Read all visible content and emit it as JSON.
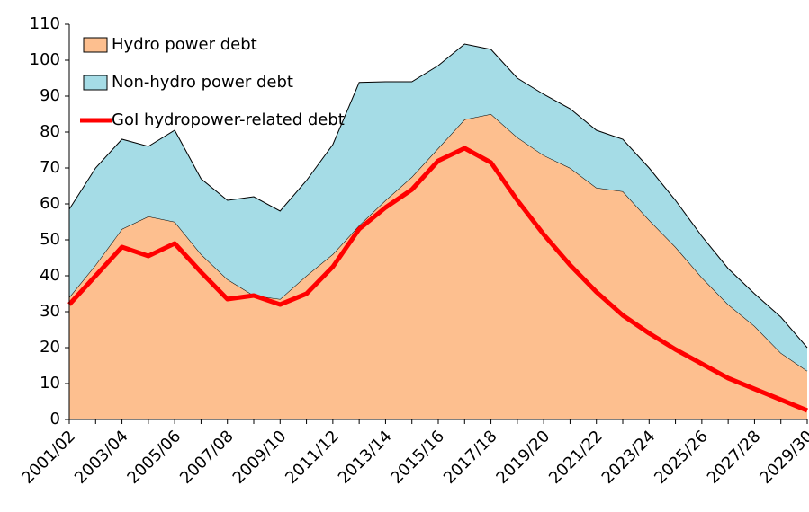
{
  "chart_data": {
    "type": "stacked-area-line",
    "categories": [
      "2001/02",
      null,
      "2003/04",
      null,
      "2005/06",
      null,
      "2007/08",
      null,
      "2009/10",
      null,
      "2011/12",
      null,
      "2013/14",
      null,
      "2015/16",
      null,
      "2017/18",
      null,
      "2019/20",
      null,
      "2021/22",
      null,
      "2023/24",
      null,
      "2025/26",
      null,
      "2027/28",
      null,
      "2029/30"
    ],
    "series": [
      {
        "name": "Hydro power debt",
        "color": "#fdbf8f",
        "kind": "area",
        "values": [
          34,
          43,
          53,
          56.5,
          55,
          46,
          39,
          34.5,
          33.5,
          40,
          46,
          54,
          61,
          67.5,
          75.5,
          83.5,
          85,
          78.5,
          73.5,
          70,
          64.5,
          63.5,
          55.5,
          48,
          39.5,
          32,
          26,
          18.5,
          13.5
        ]
      },
      {
        "name": "Non-hydro power debt",
        "color": "#a5dce6",
        "kind": "area",
        "values": [
          24.5,
          27,
          25,
          19.5,
          25.5,
          21,
          22,
          27.5,
          24.5,
          26.5,
          30.5,
          39.8,
          33,
          26.5,
          23,
          21,
          18,
          16.5,
          17,
          16.5,
          16,
          14.5,
          14.5,
          13,
          11.5,
          10,
          9,
          10,
          6.5
        ]
      },
      {
        "name": "GoI hydropower-related debt",
        "color": "#ff0000",
        "kind": "line",
        "values": [
          32,
          40,
          48,
          45.5,
          49,
          41,
          33.5,
          34.5,
          32,
          35,
          42.5,
          53,
          59,
          64,
          72,
          75.5,
          71.5,
          61,
          51.5,
          43,
          35.5,
          29,
          24,
          19.5,
          15.5,
          11.5,
          8.5,
          5.5,
          2.5
        ]
      }
    ],
    "ylim": [
      0,
      110
    ],
    "yticks": [
      0,
      10,
      20,
      30,
      40,
      50,
      60,
      70,
      80,
      90,
      100,
      110
    ],
    "legend": "top-left"
  }
}
